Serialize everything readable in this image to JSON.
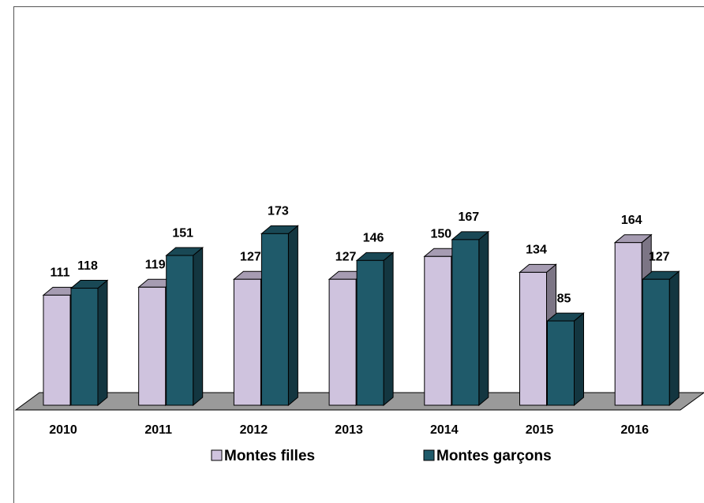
{
  "chart_data": {
    "type": "bar3d",
    "categories": [
      "2010",
      "2011",
      "2012",
      "2013",
      "2014",
      "2015",
      "2016"
    ],
    "series": [
      {
        "name": "Montes filles",
        "color": "#cfc3de",
        "values": [
          111,
          119,
          127,
          127,
          150,
          134,
          164
        ]
      },
      {
        "name": "Montes garçons",
        "color": "#1f5a6a",
        "values": [
          118,
          151,
          173,
          146,
          167,
          85,
          127
        ]
      }
    ],
    "legend": "bottom"
  }
}
